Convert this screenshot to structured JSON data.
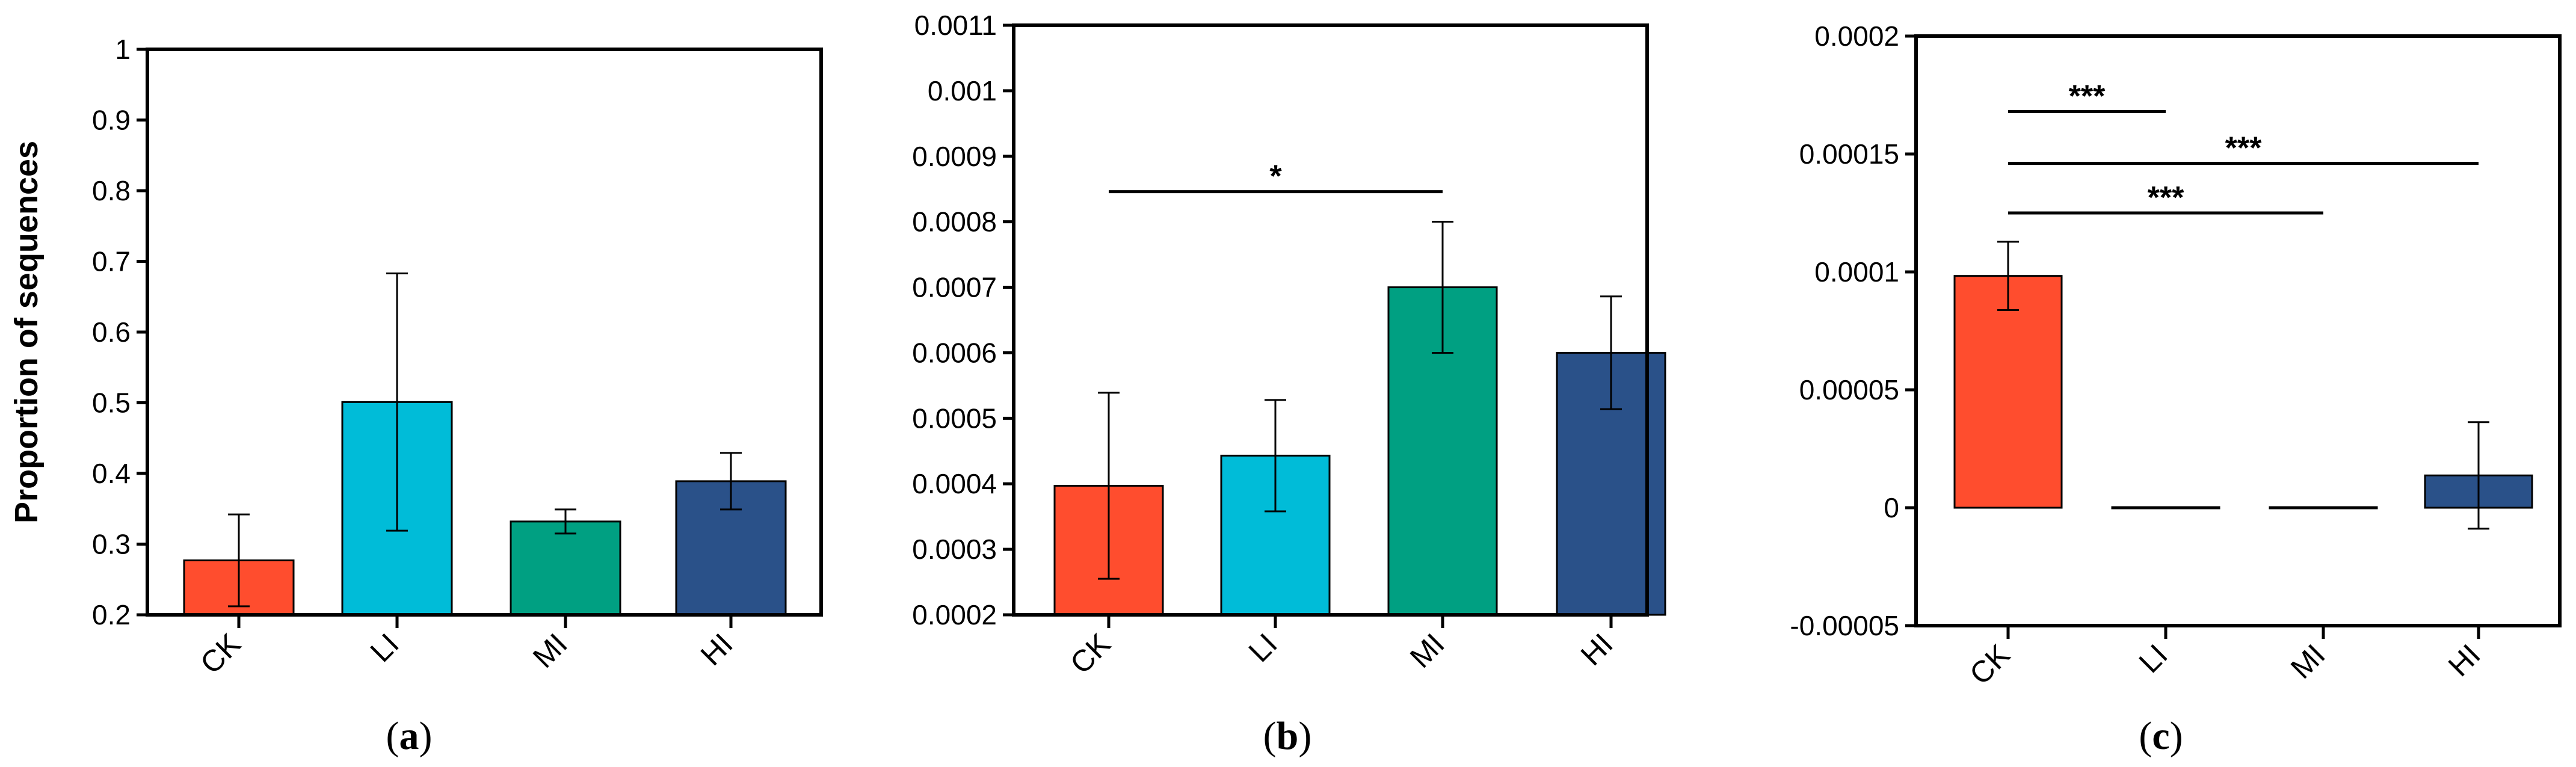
{
  "figure": {
    "panels": [
      "a",
      "b",
      "c"
    ]
  },
  "colors": {
    "CK": "#ff4d2e",
    "LI": "#00bcd8",
    "MI": "#00a082",
    "HI": "#2a5189",
    "axis": "#000000"
  },
  "chart_data": [
    {
      "type": "bar",
      "panel": "a",
      "categories": [
        "CK",
        "LI",
        "MI",
        "HI"
      ],
      "values": [
        0.277,
        0.501,
        0.332,
        0.389
      ],
      "errors": [
        0.065,
        0.182,
        0.017,
        0.04
      ],
      "ylabel": "Proportion of sequences",
      "ylim": [
        0.2,
        1.0
      ],
      "yticks": [
        0.2,
        0.3,
        0.4,
        0.5,
        0.6,
        0.7,
        0.8,
        0.9,
        1.0
      ],
      "ytick_labels": [
        "0.2",
        "0.3",
        "0.4",
        "0.5",
        "0.6",
        "0.7",
        "0.8",
        "0.9",
        "1"
      ],
      "significance": []
    },
    {
      "type": "bar",
      "panel": "b",
      "categories": [
        "CK",
        "LI",
        "MI",
        "HI"
      ],
      "values": [
        0.000397,
        0.000443,
        0.0007,
        0.0006
      ],
      "errors": [
        0.000142,
        8.5e-05,
        0.0001,
        8.6e-05
      ],
      "ylabel": "",
      "ylim": [
        0.0002,
        0.0011
      ],
      "yticks": [
        0.0002,
        0.0003,
        0.0004,
        0.0005,
        0.0006,
        0.0007,
        0.0008,
        0.0009,
        0.001,
        0.0011
      ],
      "ytick_labels": [
        "0.0002",
        "0.0003",
        "0.0004",
        "0.0005",
        "0.0006",
        "0.0007",
        "0.0008",
        "0.0009",
        "0.001",
        "0.0011"
      ],
      "significance": [
        {
          "from": "CK",
          "to": "MI",
          "y": 0.000846,
          "label": "*"
        }
      ]
    },
    {
      "type": "bar",
      "panel": "c",
      "categories": [
        "CK",
        "LI",
        "MI",
        "HI"
      ],
      "values": [
        9.83e-05,
        0.0,
        0.0,
        1.37e-05
      ],
      "errors": [
        1.45e-05,
        0.0,
        0.0,
        2.26e-05
      ],
      "ylabel": "",
      "ylim": [
        -5e-05,
        0.0002
      ],
      "yticks": [
        -5e-05,
        0.0,
        5e-05,
        0.0001,
        0.00015,
        0.0002
      ],
      "ytick_labels": [
        "-0.00005",
        "0",
        "0.00005",
        "0.0001",
        "0.00015",
        "0.0002"
      ],
      "significance": [
        {
          "from": "CK",
          "to": "LI",
          "y": 0.000168,
          "label": "***"
        },
        {
          "from": "CK",
          "to": "HI",
          "y": 0.000146,
          "label": "***"
        },
        {
          "from": "CK",
          "to": "MI",
          "y": 0.000125,
          "label": "***"
        }
      ]
    }
  ]
}
